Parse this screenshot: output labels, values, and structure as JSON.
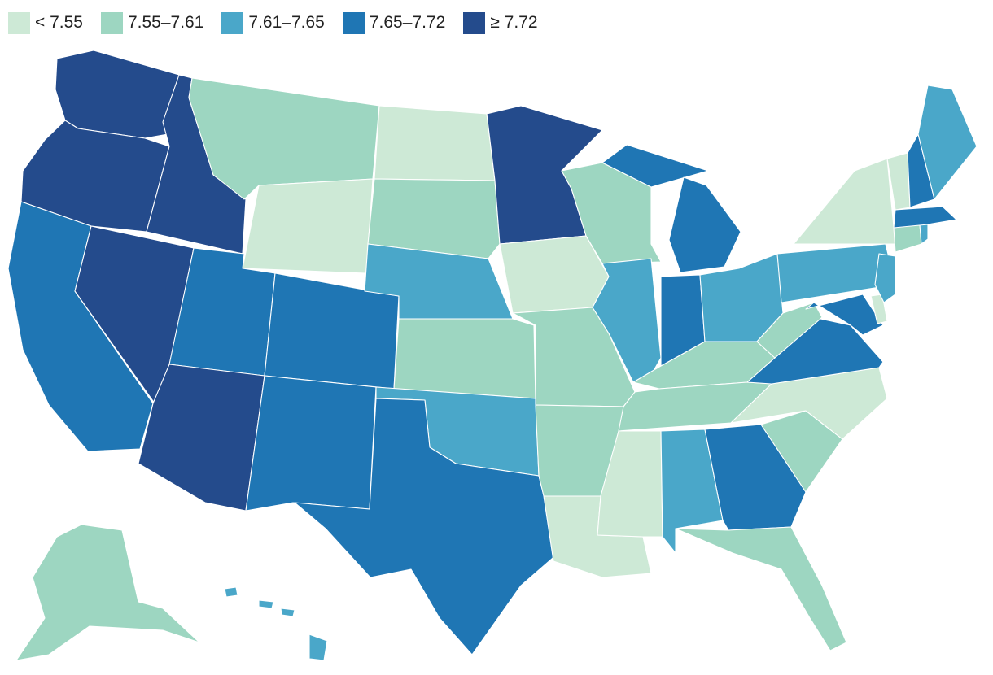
{
  "legend": [
    {
      "label": "< 7.55",
      "bin": 0
    },
    {
      "label": "7.55–7.61",
      "bin": 1
    },
    {
      "label": "7.61–7.65",
      "bin": 2
    },
    {
      "label": "7.65–7.72",
      "bin": 3
    },
    {
      "label": "≥ 7.72",
      "bin": 4
    }
  ],
  "colors": [
    "#cde9d6",
    "#9dd6c1",
    "#4aa7c9",
    "#1f76b4",
    "#244b8c"
  ],
  "states": {
    "WA": 4,
    "OR": 4,
    "ID": 4,
    "NV": 4,
    "AZ": 4,
    "MN": 4,
    "CA": 3,
    "UT": 3,
    "CO": 3,
    "NM": 3,
    "TX": 3,
    "MI": 3,
    "IN": 3,
    "GA": 3,
    "VA": 3,
    "MD": 3,
    "NH": 3,
    "MA": 3,
    "NE": 2,
    "OK": 2,
    "IL": 2,
    "OH": 2,
    "PA": 2,
    "NJ": 2,
    "ME": 2,
    "AL": 2,
    "HI": 2,
    "RI": 2,
    "MT": 1,
    "SD": 1,
    "KS": 1,
    "MO": 1,
    "AR": 1,
    "WI": 1,
    "KY": 1,
    "TN": 1,
    "WV": 1,
    "SC": 1,
    "FL": 1,
    "AK": 1,
    "CT": 1,
    "ND": 0,
    "WY": 0,
    "IA": 0,
    "LA": 0,
    "MS": 0,
    "NC": 0,
    "NY": 0,
    "VT": 0,
    "DE": 0
  }
}
